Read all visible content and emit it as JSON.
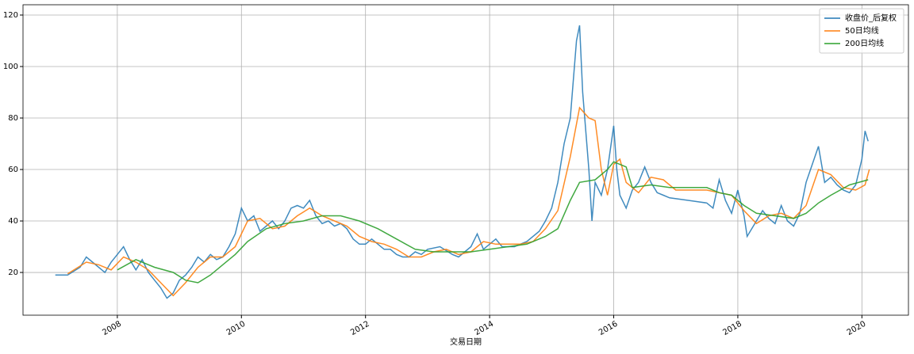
{
  "chart_data": {
    "type": "line",
    "xlabel": "交易日期",
    "xlim": [
      2006.48,
      2020.75
    ],
    "xticks": [
      2008,
      2010,
      2012,
      2014,
      2016,
      2018,
      2020
    ],
    "ylim": [
      3.4,
      124
    ],
    "yticks": [
      20,
      40,
      60,
      80,
      100,
      120
    ],
    "grid": true,
    "legend": "upper right",
    "series": [
      {
        "name": "收盘价_后复权",
        "color": "#1f77b4",
        "x": [
          2007.0,
          2007.2,
          2007.4,
          2007.5,
          2007.6,
          2007.8,
          2007.9,
          2008.0,
          2008.1,
          2008.2,
          2008.3,
          2008.4,
          2008.5,
          2008.6,
          2008.7,
          2008.8,
          2008.9,
          2009.0,
          2009.1,
          2009.2,
          2009.3,
          2009.4,
          2009.5,
          2009.6,
          2009.7,
          2009.8,
          2009.9,
          2010.0,
          2010.1,
          2010.2,
          2010.3,
          2010.4,
          2010.5,
          2010.6,
          2010.7,
          2010.8,
          2010.9,
          2011.0,
          2011.1,
          2011.2,
          2011.3,
          2011.4,
          2011.5,
          2011.6,
          2011.7,
          2011.8,
          2011.9,
          2012.0,
          2012.1,
          2012.2,
          2012.3,
          2012.4,
          2012.5,
          2012.6,
          2012.7,
          2012.8,
          2012.9,
          2013.0,
          2013.2,
          2013.4,
          2013.5,
          2013.7,
          2013.8,
          2013.9,
          2014.0,
          2014.1,
          2014.2,
          2014.4,
          2014.6,
          2014.8,
          2014.9,
          2015.0,
          2015.1,
          2015.2,
          2015.3,
          2015.4,
          2015.45,
          2015.5,
          2015.6,
          2015.65,
          2015.7,
          2015.8,
          2015.9,
          2016.0,
          2016.05,
          2016.1,
          2016.2,
          2016.3,
          2016.4,
          2016.5,
          2016.6,
          2016.7,
          2016.8,
          2016.9,
          2017.2,
          2017.5,
          2017.6,
          2017.7,
          2017.8,
          2017.9,
          2018.0,
          2018.1,
          2018.15,
          2018.3,
          2018.4,
          2018.5,
          2018.6,
          2018.7,
          2018.8,
          2018.9,
          2019.0,
          2019.1,
          2019.2,
          2019.3,
          2019.4,
          2019.5,
          2019.6,
          2019.7,
          2019.8,
          2019.9,
          2020.0,
          2020.05,
          2020.1
        ],
        "values": [
          19,
          19,
          22,
          26,
          24,
          20,
          24,
          27,
          30,
          25,
          21,
          25,
          20,
          17,
          14,
          10,
          12,
          17,
          19,
          22,
          26,
          24,
          27,
          25,
          26,
          30,
          35,
          45,
          40,
          42,
          36,
          38,
          40,
          37,
          40,
          45,
          46,
          45,
          48,
          42,
          39,
          40,
          38,
          39,
          37,
          33,
          31,
          31,
          33,
          31,
          29,
          29,
          27,
          26,
          26,
          28,
          27,
          29,
          30,
          27,
          26,
          30,
          35,
          29,
          31,
          33,
          30,
          30,
          32,
          36,
          40,
          45,
          55,
          70,
          80,
          110,
          116,
          90,
          60,
          40,
          55,
          50,
          60,
          77,
          60,
          50,
          45,
          52,
          55,
          61,
          55,
          51,
          50,
          49,
          48,
          47,
          45,
          56,
          48,
          43,
          52,
          42,
          34,
          40,
          44,
          41,
          39,
          46,
          40,
          38,
          43,
          55,
          62,
          69,
          55,
          57,
          54,
          52,
          51,
          54,
          64,
          75,
          71
        ]
      },
      {
        "name": "50日均线",
        "color": "#ff7f0e",
        "x": [
          2007.2,
          2007.5,
          2007.7,
          2007.9,
          2008.1,
          2008.3,
          2008.5,
          2008.7,
          2008.9,
          2009.1,
          2009.3,
          2009.5,
          2009.7,
          2009.9,
          2010.1,
          2010.3,
          2010.5,
          2010.7,
          2010.9,
          2011.1,
          2011.3,
          2011.5,
          2011.7,
          2011.9,
          2012.1,
          2012.3,
          2012.5,
          2012.7,
          2012.9,
          2013.1,
          2013.3,
          2013.5,
          2013.7,
          2013.9,
          2014.1,
          2014.3,
          2014.5,
          2014.7,
          2014.9,
          2015.1,
          2015.3,
          2015.45,
          2015.6,
          2015.7,
          2015.8,
          2015.9,
          2016.0,
          2016.1,
          2016.2,
          2016.4,
          2016.6,
          2016.8,
          2017.0,
          2017.5,
          2017.7,
          2017.9,
          2018.1,
          2018.3,
          2018.5,
          2018.7,
          2018.9,
          2019.1,
          2019.3,
          2019.5,
          2019.7,
          2019.9,
          2020.05,
          2020.12
        ],
        "values": [
          19.5,
          24,
          23,
          21,
          26,
          24,
          21,
          16,
          11,
          16,
          22,
          26,
          26,
          30,
          40,
          41,
          37,
          38,
          42,
          45,
          42,
          40,
          38,
          34,
          32,
          31,
          29,
          26,
          26,
          28,
          29,
          27,
          28,
          32,
          31,
          31,
          31,
          32,
          37,
          44,
          65,
          84,
          80,
          79,
          60,
          50,
          62,
          64,
          55,
          51,
          57,
          56,
          52,
          52,
          51,
          50,
          44,
          39,
          42,
          43,
          41,
          46,
          60,
          58,
          53,
          52,
          54,
          60
        ]
      },
      {
        "name": "200日均线",
        "color": "#2ca02c",
        "x": [
          2008.0,
          2008.3,
          2008.6,
          2008.9,
          2009.1,
          2009.3,
          2009.5,
          2009.7,
          2009.9,
          2010.1,
          2010.4,
          2010.7,
          2011.0,
          2011.3,
          2011.6,
          2011.9,
          2012.2,
          2012.5,
          2012.8,
          2013.1,
          2013.4,
          2013.7,
          2014.0,
          2014.3,
          2014.6,
          2014.9,
          2015.1,
          2015.3,
          2015.45,
          2015.7,
          2015.9,
          2016.0,
          2016.2,
          2016.3,
          2016.6,
          2016.9,
          2017.5,
          2017.7,
          2017.9,
          2018.1,
          2018.3,
          2018.6,
          2018.9,
          2019.1,
          2019.3,
          2019.5,
          2019.8,
          2020.1
        ],
        "values": [
          21,
          25,
          22,
          20,
          17,
          16,
          19,
          23,
          27,
          32,
          37,
          39,
          40,
          42,
          42,
          40,
          37,
          33,
          29,
          28,
          28,
          28,
          29,
          30,
          31,
          34,
          37,
          48,
          55,
          56,
          60,
          63,
          61,
          53,
          54,
          53,
          53,
          51,
          50,
          46,
          43,
          42,
          41,
          43,
          47,
          50,
          54,
          56
        ]
      }
    ]
  }
}
